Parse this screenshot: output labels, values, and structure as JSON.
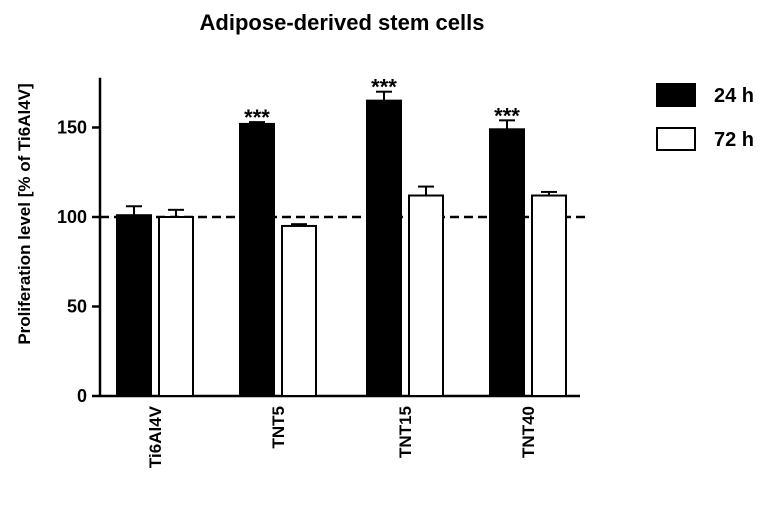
{
  "chart_data": {
    "type": "bar",
    "title": "Adipose-derived stem cells",
    "xlabel": "",
    "ylabel": "Proliferation level [% of Ti6Al4V]",
    "ylim": [
      0,
      180
    ],
    "yticks": [
      0,
      50,
      100,
      150
    ],
    "categories": [
      "Ti6Al4V",
      "TNT5",
      "TNT15",
      "TNT40"
    ],
    "series": [
      {
        "name": "24 h",
        "color": "#000000",
        "values": [
          101,
          152,
          165,
          149
        ],
        "errors": [
          5,
          1,
          5,
          5
        ]
      },
      {
        "name": "72 h",
        "color": "#ffffff",
        "values": [
          100,
          95,
          112,
          112
        ],
        "errors": [
          4,
          1,
          5,
          2
        ]
      }
    ],
    "reference_line": {
      "y": 100,
      "style": "dashed"
    },
    "significance": [
      {
        "category": "TNT5",
        "series": "24 h",
        "label": "***"
      },
      {
        "category": "TNT15",
        "series": "24 h",
        "label": "***"
      },
      {
        "category": "TNT40",
        "series": "24 h",
        "label": "***"
      }
    ],
    "legend_position": "right",
    "grid": false
  }
}
